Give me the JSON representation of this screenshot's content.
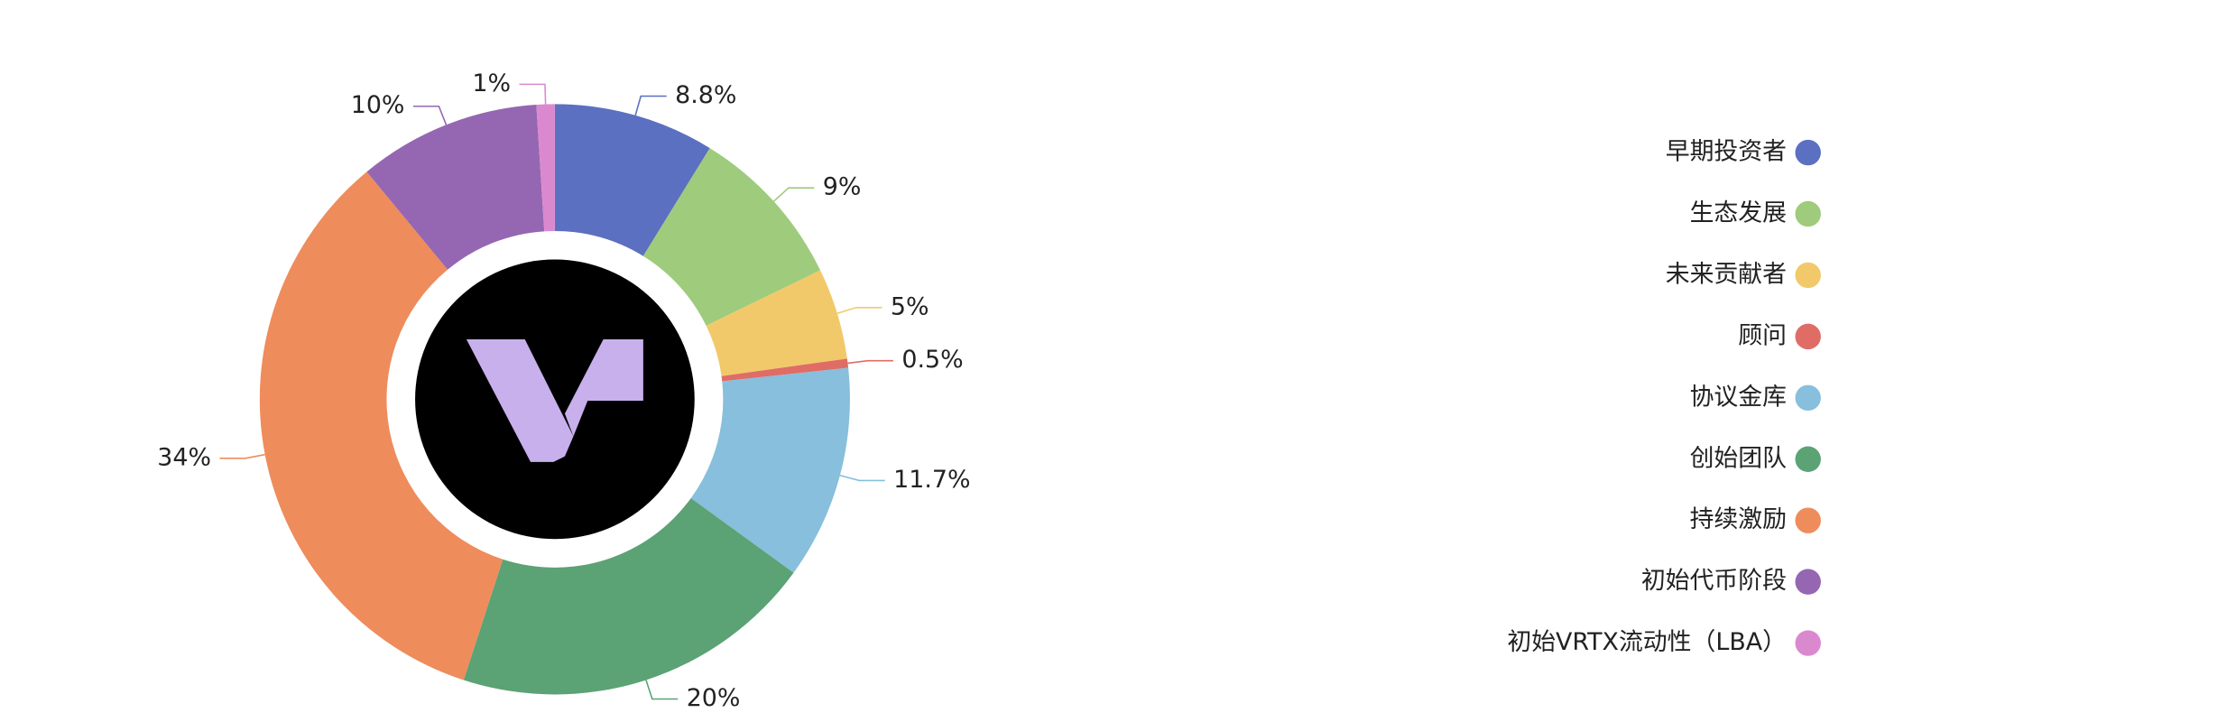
{
  "chart_data": {
    "type": "pie",
    "categories": [
      "早期投资者",
      "生态发展",
      "未来贡献者",
      "顾问",
      "协议金库",
      "创始团队",
      "持续激励",
      "初始代币阶段",
      "初始VRTX流动性（LBA）"
    ],
    "values": [
      8.8,
      9,
      5,
      0.5,
      11.7,
      20,
      34,
      10,
      1
    ],
    "value_labels": [
      "8.8%",
      "9%",
      "5%",
      "0.5%",
      "11.7%",
      "20%",
      "34%",
      "10%",
      "1%"
    ],
    "colors": [
      "#5b70c0",
      "#9fcb7c",
      "#f2c96a",
      "#e06c66",
      "#87bfdc",
      "#5ba275",
      "#ee8c5c",
      "#9567b2",
      "#db89ce"
    ],
    "legend": "right"
  }
}
